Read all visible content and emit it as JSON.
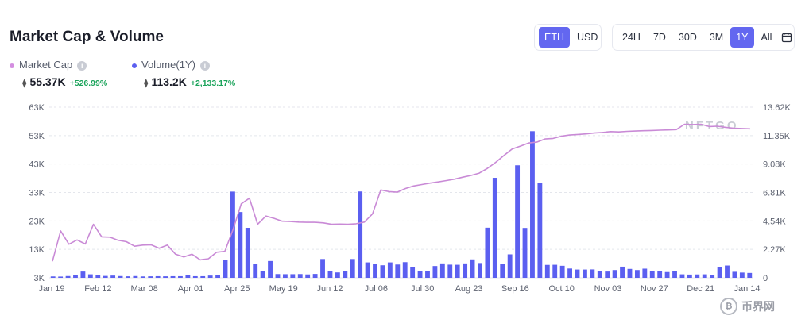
{
  "header": {
    "title": "Market Cap & Volume"
  },
  "currency_toggle": {
    "options": [
      "ETH",
      "USD"
    ],
    "active": "ETH"
  },
  "range_toggle": {
    "options": [
      "24H",
      "7D",
      "30D",
      "3M",
      "1Y",
      "All"
    ],
    "active": "1Y",
    "calendar_icon": "calendar-icon"
  },
  "legend": {
    "market_cap": {
      "label": "Market Cap",
      "value": "55.37K",
      "change": "+526.99%",
      "color": "#d48ee0"
    },
    "volume": {
      "label": "Volume(1Y)",
      "value": "113.2K",
      "change": "+2,133.17%",
      "color": "#5b5ff0"
    },
    "currency_symbol": "⧫"
  },
  "watermark": "NFTGO",
  "footer_logo": {
    "text": "币界网",
    "icon": "bitcoin-icon"
  },
  "colors": {
    "accent": "#6367f0",
    "positive": "#1aa35a",
    "grid": "#e4e6ec",
    "line": "#c98ad6",
    "bar": "#5b5ff0"
  },
  "chart_data": {
    "type": "bar+line",
    "x_ticks": [
      "Jan 19",
      "Feb 12",
      "Mar 08",
      "Apr 01",
      "Apr 25",
      "May 19",
      "Jun 12",
      "Jul 06",
      "Jul 30",
      "Aug 23",
      "Sep 16",
      "Oct 10",
      "Nov 03",
      "Nov 27",
      "Dec 21",
      "Jan 14"
    ],
    "y_left": {
      "ticks": [
        "3K",
        "13K",
        "23K",
        "33K",
        "43K",
        "53K",
        "63K"
      ],
      "range": [
        3000,
        63000
      ]
    },
    "y_right": {
      "ticks": [
        "0",
        "2.27K",
        "4.54K",
        "6.81K",
        "9.08K",
        "11.35K",
        "13.62K"
      ],
      "range": [
        0,
        13620
      ]
    },
    "grid": true,
    "series": [
      {
        "name": "Market Cap",
        "type": "line",
        "axis": "left",
        "values": [
          8800,
          19500,
          14800,
          16300,
          14900,
          21800,
          17400,
          17300,
          16200,
          15700,
          14100,
          14500,
          14600,
          13400,
          14500,
          11300,
          10300,
          11300,
          9300,
          9700,
          12000,
          12300,
          19900,
          29000,
          31000,
          21800,
          24700,
          23900,
          22900,
          22800,
          22600,
          22500,
          22500,
          22300,
          21800,
          21900,
          21800,
          22000,
          22600,
          25500,
          33900,
          33300,
          33100,
          34400,
          35300,
          35800,
          36300,
          36700,
          37200,
          37700,
          38400,
          39000,
          39800,
          41500,
          43600,
          46000,
          48300,
          49300,
          50400,
          50700,
          51800,
          52000,
          52800,
          53200,
          53400,
          53600,
          53900,
          54100,
          54400,
          54300,
          54500,
          54600,
          54700,
          54800,
          54900,
          55000,
          55100,
          57000,
          56900,
          57000,
          56200,
          56300,
          55900,
          55600,
          55500,
          55370
        ]
      },
      {
        "name": "Volume(1Y)",
        "type": "bar",
        "axis": "right",
        "values": [
          110,
          100,
          140,
          210,
          500,
          280,
          240,
          150,
          180,
          140,
          120,
          140,
          110,
          120,
          130,
          120,
          130,
          130,
          190,
          130,
          130,
          180,
          230,
          1430,
          6880,
          5250,
          3990,
          1140,
          550,
          1340,
          300,
          290,
          290,
          300,
          270,
          310,
          1500,
          520,
          430,
          550,
          1500,
          6890,
          1230,
          1120,
          1000,
          1230,
          1060,
          1250,
          880,
          520,
          530,
          940,
          1150,
          1050,
          1040,
          1150,
          1470,
          1180,
          4000,
          7980,
          1110,
          1870,
          8980,
          3980,
          11700,
          7570,
          1030,
          1040,
          960,
          740,
          660,
          660,
          670,
          540,
          500,
          620,
          890,
          710,
          620,
          730,
          510,
          570,
          460,
          560,
          280,
          260,
          270,
          280,
          240,
          830,
          980,
          480,
          420,
          390
        ]
      }
    ]
  }
}
